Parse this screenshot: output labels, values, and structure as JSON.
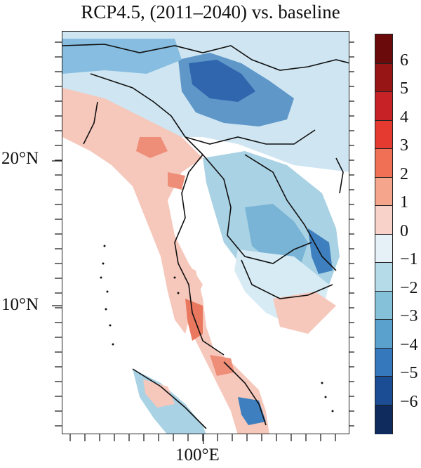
{
  "title": "RCP4.5, (2011–2040) vs. baseline",
  "lat_ticks": [
    {
      "label": "20°N"
    },
    {
      "label": "10°N"
    }
  ],
  "lon_ticks": [
    {
      "label": "100°E"
    }
  ],
  "colorbar": {
    "labels": [
      "6",
      "5",
      "4",
      "3",
      "2",
      "1",
      "0",
      "−1",
      "−2",
      "−3",
      "−4",
      "−5",
      "−6"
    ],
    "colors": [
      "#6b0a0a",
      "#981515",
      "#c72326",
      "#e43a2f",
      "#f07055",
      "#f4a58c",
      "#f8d2c9",
      "#e6f1f7",
      "#b6dbe8",
      "#86c1da",
      "#5aa2cd",
      "#3578bb",
      "#1b4d94",
      "#0f2a5c"
    ]
  },
  "map": {
    "lat_range": [
      2,
      28
    ],
    "lon_range": [
      92,
      110
    ],
    "colors": {
      "land_blue_light": "#d7ebf4",
      "land_blue_mid": "#a9d2e4",
      "land_blue": "#79b4d6",
      "land_blue_dark": "#3d7fbf",
      "land_pink": "#f6c7bb",
      "land_red": "#ee8e78",
      "sea": "#ffffff",
      "border": "#111111"
    }
  }
}
